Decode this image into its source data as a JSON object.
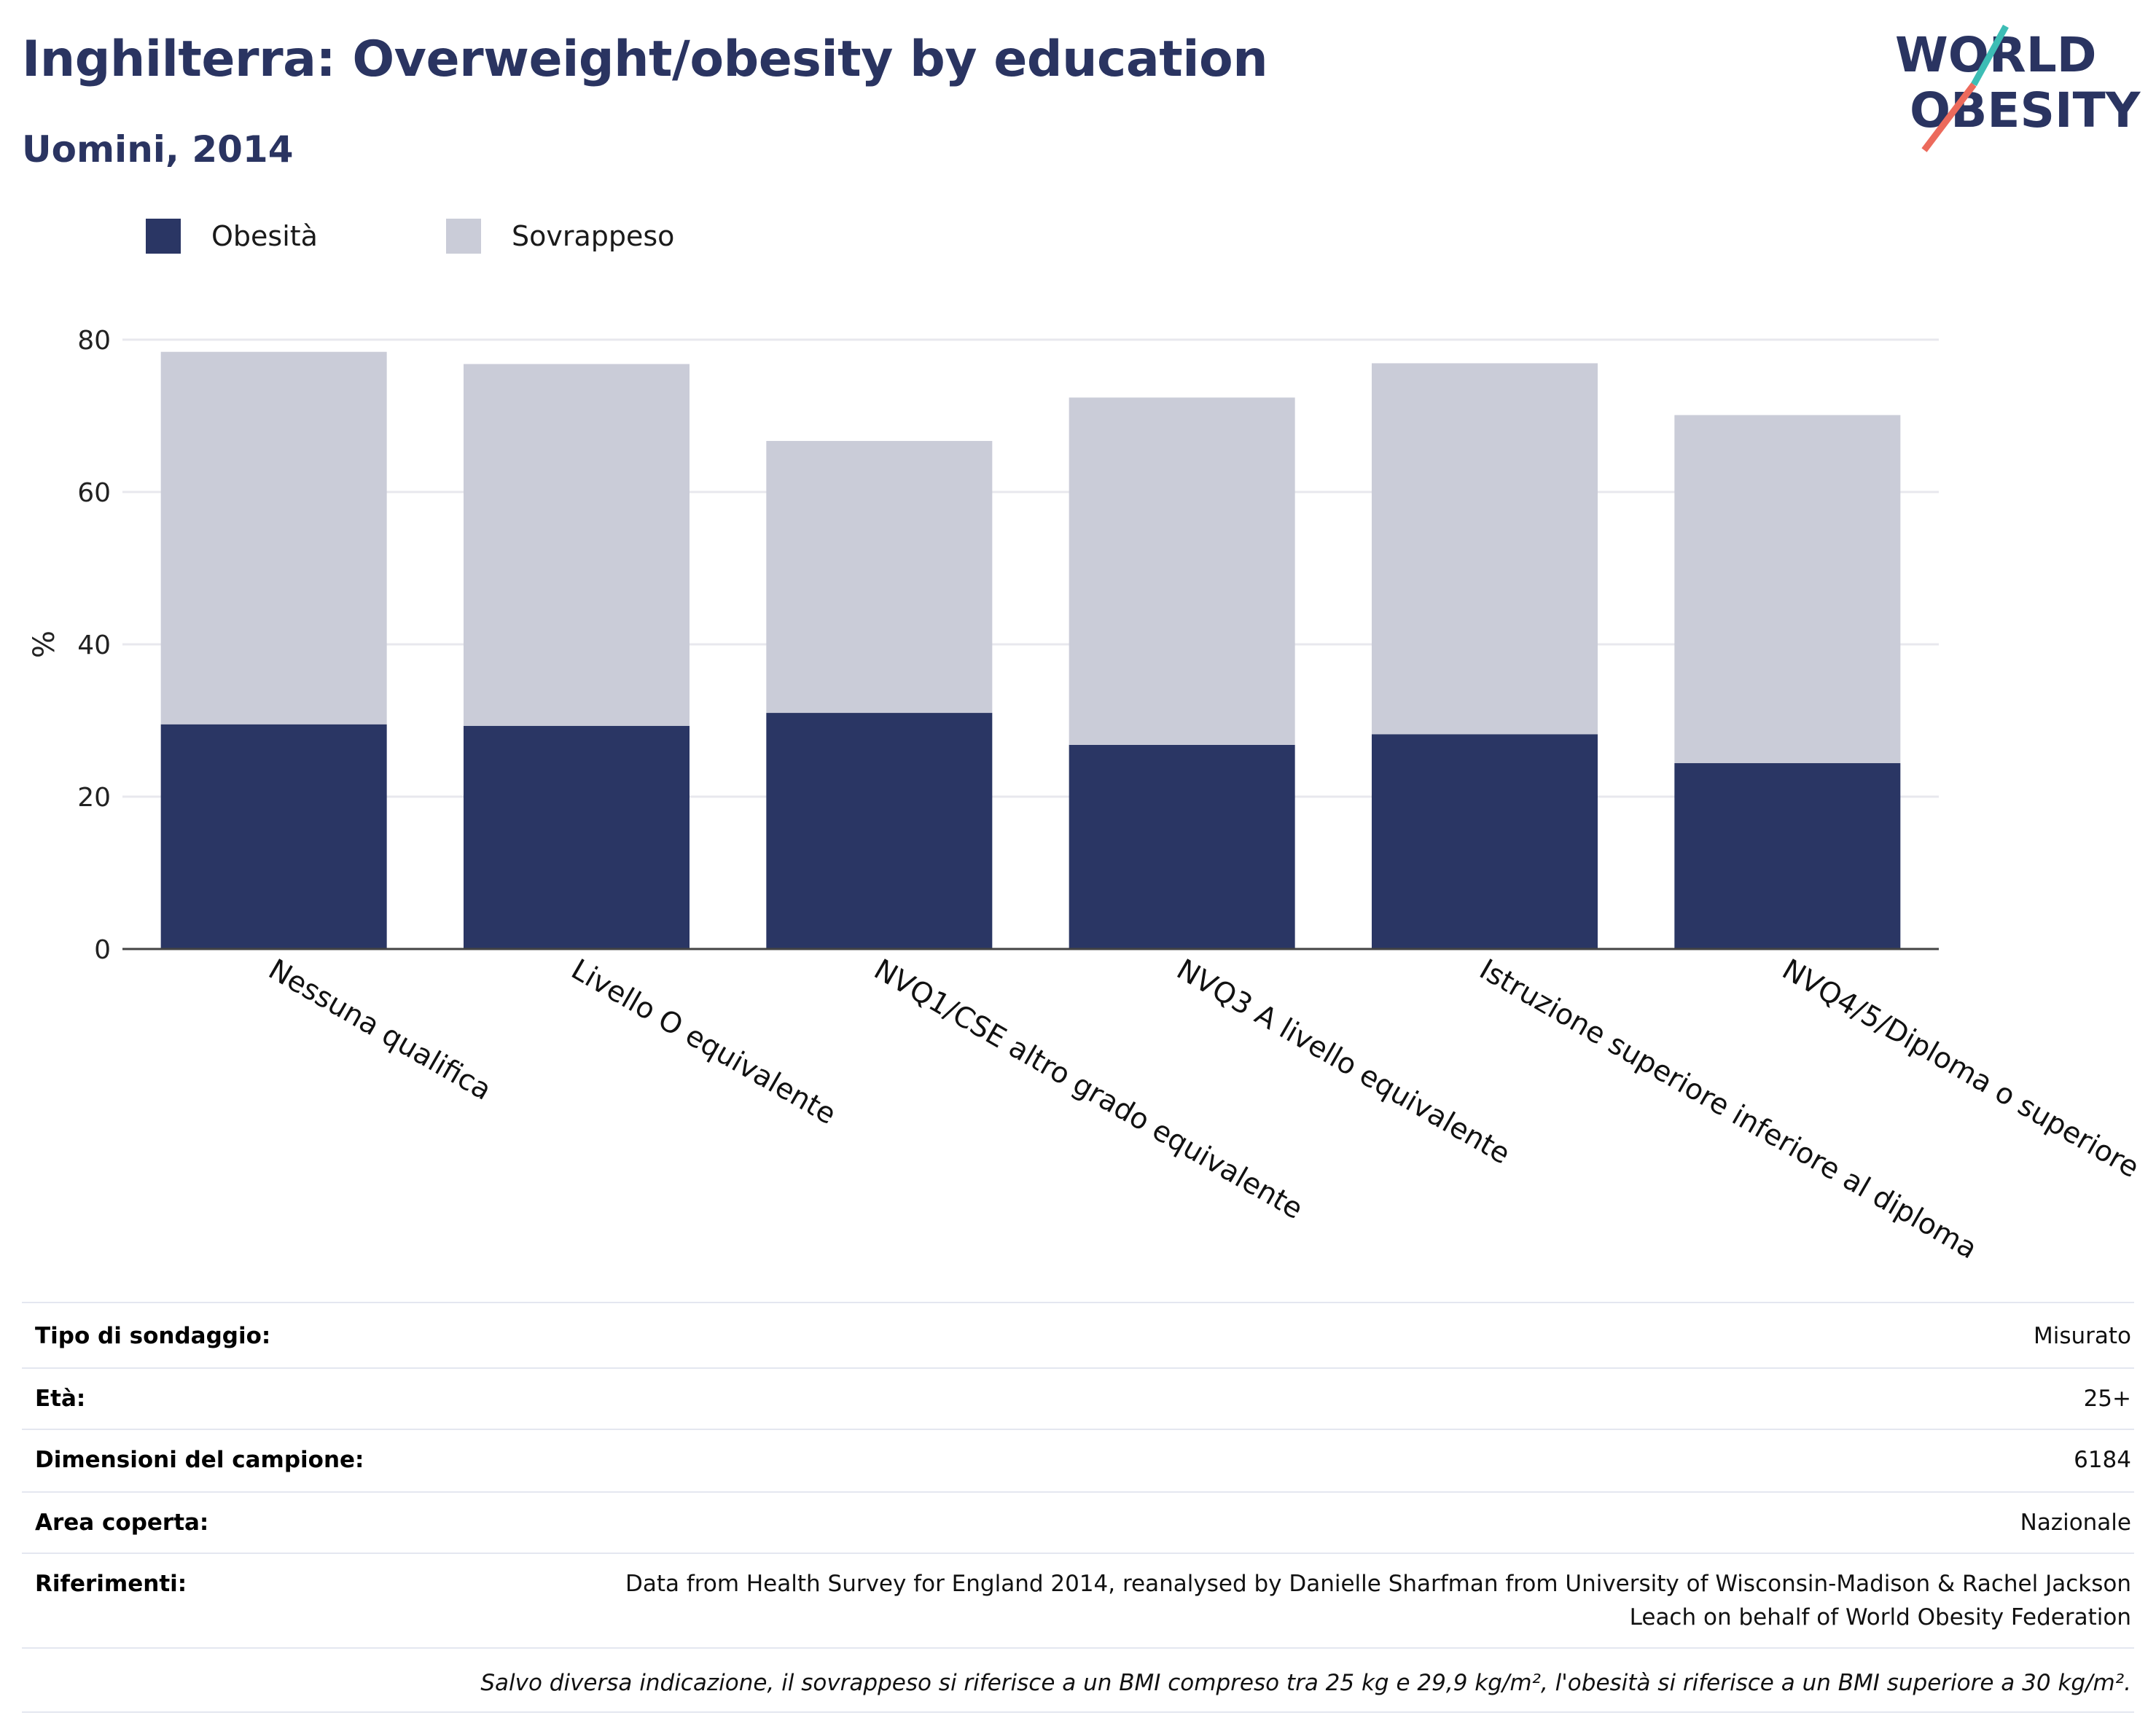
{
  "header": {
    "title": "Inghilterra: Overweight/obesity by education",
    "subtitle": "Uomini, 2014"
  },
  "logo": {
    "line1": "WORLD",
    "line2": "OBESITY"
  },
  "colors": {
    "obesity": "#2a3664",
    "overweight": "#caccd8",
    "title": "#2a3461",
    "grid": "#e8e8ee",
    "axis": "#444444",
    "logo_teal": "#3dbdb5",
    "logo_coral": "#ec6a5c"
  },
  "chart_data": {
    "type": "bar",
    "stacked": true,
    "ylabel": "%",
    "xlabel": "",
    "ylim": [
      0,
      80
    ],
    "yticks": [
      0,
      20,
      40,
      60,
      80
    ],
    "grid": true,
    "legend_position": "top-left",
    "categories": [
      "Nessuna qualifica",
      "Livello O equivalente",
      "NVQ1/CSE altro grado equivalente",
      "NVQ3 A livello equivalente",
      "Istruzione superiore inferiore al diploma",
      "NVQ4/5/Diploma o superiore"
    ],
    "series": [
      {
        "name": "Obesità",
        "values": [
          29.5,
          29.3,
          31.0,
          26.8,
          28.2,
          24.4
        ]
      },
      {
        "name": "Sovrappeso",
        "values": [
          48.9,
          47.5,
          35.7,
          45.6,
          48.7,
          45.7
        ]
      }
    ]
  },
  "info": {
    "rows": [
      {
        "key": "Tipo di sondaggio:",
        "value": "Misurato"
      },
      {
        "key": "Età:",
        "value": "25+"
      },
      {
        "key": "Dimensioni del campione:",
        "value": "6184"
      },
      {
        "key": "Area coperta:",
        "value": "Nazionale"
      },
      {
        "key": "Riferimenti:",
        "value_line1": "Data from Health Survey for England 2014, reanalysed by Danielle Sharfman from University of Wisconsin-Madison & Rachel Jackson",
        "value_line2": "Leach on behalf of World Obesity Federation"
      }
    ],
    "note": "Salvo diversa indicazione, il sovrappeso si riferisce a un BMI compreso tra 25 kg e 29,9 kg/m², l'obesità si riferisce a un BMI superiore a 30 kg/m²."
  }
}
